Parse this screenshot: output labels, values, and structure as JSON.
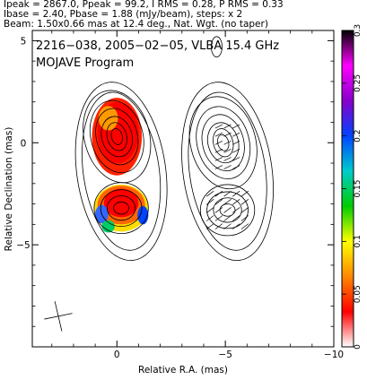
{
  "header": {
    "line1": "Ipeak = 2867.0, Ppeak = 99.2, I RMS = 0.28, P RMS = 0.33",
    "line2": "Ibase = 2.40, Pbase = 1.88 (mJy/beam), steps: x 2",
    "line3": "Beam: 1.50x0.66 mas at 12.4 deg., Nat. Wgt. (no taper)"
  },
  "chart_data": {
    "type": "heatmap",
    "title": "2216−038, 2005−02−05, VLBA 15.4 GHz",
    "subtitle": "MOJAVE Program",
    "xlabel": "Relative R.A. (mas)",
    "ylabel": "Relative Declination (mas)",
    "xlim": [
      3.9,
      -10.0
    ],
    "ylim": [
      -10.0,
      5.5
    ],
    "x_ticks": [
      {
        "value": 0,
        "label": "0"
      },
      {
        "value": -5,
        "label": "−5"
      },
      {
        "value": -10,
        "label": "−10"
      }
    ],
    "y_ticks": [
      {
        "value": 5,
        "label": "5"
      },
      {
        "value": 0,
        "label": "0"
      },
      {
        "value": -5,
        "label": "−5"
      }
    ],
    "colorbar": {
      "min": 0,
      "max": 0.3,
      "ticks": [
        {
          "value": 0,
          "label": "0"
        },
        {
          "value": 0.05,
          "label": "0.05"
        },
        {
          "value": 0.1,
          "label": "0.1"
        },
        {
          "value": 0.15,
          "label": "0.15"
        },
        {
          "value": 0.2,
          "label": "0.2"
        },
        {
          "value": 0.25,
          "label": "0.25"
        },
        {
          "value": 0.3,
          "label": "0.3"
        }
      ],
      "colors": [
        "#ffffff",
        "#ff0000",
        "#ff8800",
        "#ffff00",
        "#00cc00",
        "#00cccc",
        "#0044ff",
        "#8800cc",
        "#ff00ff",
        "#000000"
      ]
    },
    "left_panel": {
      "center": [
        0,
        0
      ],
      "components": [
        {
          "x": 0.0,
          "y": 0.3,
          "level": "core"
        },
        {
          "x": -0.2,
          "y": -3.2,
          "level": "jet"
        }
      ]
    },
    "right_panel": {
      "center": [
        -5,
        0
      ],
      "components": [
        {
          "x": -4.9,
          "y": 0.0,
          "level": "core"
        },
        {
          "x": -5.1,
          "y": -3.3,
          "level": "jet"
        }
      ]
    },
    "beam": {
      "major_mas": 1.5,
      "minor_mas": 0.66,
      "pa_deg": 12.4
    }
  }
}
